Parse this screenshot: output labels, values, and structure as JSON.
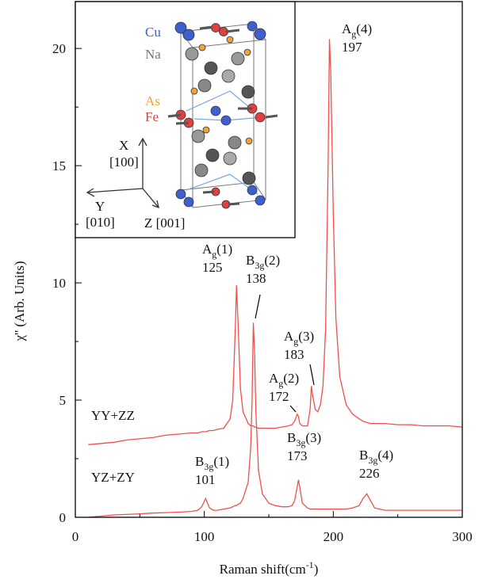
{
  "chart_data": {
    "type": "line",
    "x_label": {
      "text": "Raman shift(cm",
      "sup": "-1",
      "end": ")"
    },
    "y_label": "χ'' (Arb. Units)",
    "x": [
      10,
      20,
      30,
      40,
      50,
      60,
      70,
      80,
      90,
      95,
      98,
      101,
      104,
      107,
      110,
      115,
      120,
      122,
      124,
      125,
      126,
      128,
      130,
      134,
      136,
      137,
      138,
      139,
      140,
      142,
      145,
      150,
      155,
      160,
      165,
      168,
      170,
      172,
      173,
      174,
      176,
      180,
      182,
      183,
      184,
      186,
      188,
      190,
      192,
      194,
      196,
      197,
      198,
      200,
      202,
      205,
      210,
      215,
      220,
      223,
      226,
      229,
      232,
      240,
      250,
      260,
      270,
      280,
      290,
      300
    ],
    "series": [
      {
        "name": "YY+ZZ",
        "color": "#f0504a",
        "values": [
          3.1,
          3.15,
          3.2,
          3.3,
          3.35,
          3.4,
          3.5,
          3.55,
          3.6,
          3.6,
          3.65,
          3.65,
          3.7,
          3.7,
          3.75,
          3.8,
          4.2,
          5.0,
          8.0,
          9.9,
          8.5,
          5.5,
          4.5,
          4.0,
          3.9,
          3.9,
          3.9,
          3.85,
          3.85,
          3.8,
          3.8,
          3.8,
          3.8,
          3.85,
          3.9,
          3.95,
          4.1,
          4.4,
          4.3,
          4.0,
          3.9,
          3.9,
          4.6,
          5.6,
          5.2,
          4.6,
          4.5,
          4.8,
          5.6,
          8.0,
          15.0,
          20.4,
          19.0,
          13.0,
          8.5,
          6.0,
          4.8,
          4.4,
          4.2,
          4.1,
          4.05,
          4.0,
          4.0,
          4.0,
          3.95,
          3.95,
          3.9,
          3.9,
          3.9,
          3.85
        ]
      },
      {
        "name": "YZ+ZY",
        "color": "#f0504a",
        "values": [
          0.0,
          0.05,
          0.1,
          0.12,
          0.15,
          0.18,
          0.2,
          0.22,
          0.25,
          0.3,
          0.45,
          0.8,
          0.4,
          0.3,
          0.3,
          0.35,
          0.4,
          0.45,
          0.5,
          0.5,
          0.55,
          0.6,
          0.8,
          1.5,
          3.0,
          5.0,
          8.3,
          7.0,
          4.5,
          2.0,
          1.0,
          0.6,
          0.5,
          0.45,
          0.45,
          0.5,
          0.7,
          1.3,
          1.6,
          1.3,
          0.6,
          0.4,
          0.35,
          0.35,
          0.35,
          0.35,
          0.35,
          0.35,
          0.35,
          0.35,
          0.35,
          0.35,
          0.35,
          0.35,
          0.35,
          0.35,
          0.35,
          0.4,
          0.5,
          0.8,
          1.0,
          0.7,
          0.4,
          0.3,
          0.3,
          0.3,
          0.3,
          0.3,
          0.3,
          0.3
        ]
      }
    ],
    "annotations": [
      {
        "label": "A",
        "sub": "g",
        "mode": "(4)",
        "shift": 197
      },
      {
        "label": "A",
        "sub": "g",
        "mode": "(1)",
        "shift": 125
      },
      {
        "label": "B",
        "sub": "3g",
        "mode": "(2)",
        "shift": 138
      },
      {
        "label": "A",
        "sub": "g",
        "mode": "(3)",
        "shift": 183
      },
      {
        "label": "A",
        "sub": "g",
        "mode": "(2)",
        "shift": 172
      },
      {
        "label": "B",
        "sub": "3g",
        "mode": "(1)",
        "shift": 101
      },
      {
        "label": "B",
        "sub": "3g",
        "mode": "(3)",
        "shift": 173
      },
      {
        "label": "B",
        "sub": "3g",
        "mode": "(4)",
        "shift": 226
      }
    ],
    "xlim": [
      0,
      300
    ],
    "ylim": [
      0,
      22
    ],
    "xticks": [
      0,
      100,
      200,
      300
    ],
    "yticks": [
      0,
      5,
      10,
      15,
      20
    ],
    "xticks_minor": [
      50,
      150,
      250
    ],
    "yticks_minor": [
      2.5,
      7.5,
      12.5,
      17.5
    ]
  },
  "inset": {
    "atoms": [
      "Cu",
      "Na",
      "As",
      "Fe"
    ],
    "axes": [
      {
        "name": "X",
        "dir": "[100]"
      },
      {
        "name": "Y",
        "dir": "[010]"
      },
      {
        "name": "Z [001]"
      }
    ]
  }
}
